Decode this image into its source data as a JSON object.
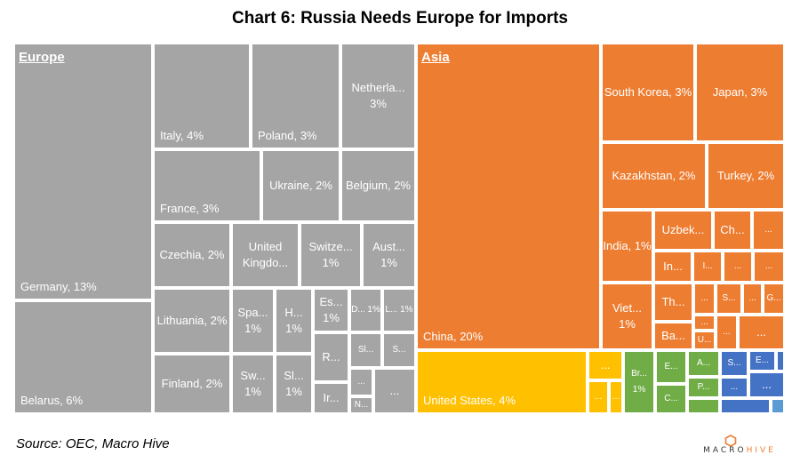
{
  "chart_data": {
    "type": "treemap",
    "title": "Chart 6: Russia Needs Europe for Imports",
    "source": "Source: OEC, Macro Hive",
    "groups": [
      {
        "name": "Europe",
        "color": "#a5a5a5",
        "items": [
          {
            "label": "Germany, 13%",
            "value": 13
          },
          {
            "label": "Belarus, 6%",
            "value": 6
          },
          {
            "label": "Italy, 4%",
            "value": 4
          },
          {
            "label": "Poland, 3%",
            "value": 3
          },
          {
            "label": "Netherla... 3%",
            "value": 3
          },
          {
            "label": "France, 3%",
            "value": 3
          },
          {
            "label": "Ukraine, 2%",
            "value": 2
          },
          {
            "label": "Belgium, 2%",
            "value": 2
          },
          {
            "label": "Czechia, 2%",
            "value": 2
          },
          {
            "label": "United Kingdo...",
            "value": null
          },
          {
            "label": "Switze... 1%",
            "value": 1
          },
          {
            "label": "Aust... 1%",
            "value": 1
          },
          {
            "label": "Lithuania, 2%",
            "value": 2
          },
          {
            "label": "Spa... 1%",
            "value": 1
          },
          {
            "label": "H... 1%",
            "value": 1
          },
          {
            "label": "Es... 1%",
            "value": 1
          },
          {
            "label": "D... 1%",
            "value": 1
          },
          {
            "label": "L... 1%",
            "value": 1
          },
          {
            "label": "Finland, 2%",
            "value": 2
          },
          {
            "label": "Sw... 1%",
            "value": 1
          },
          {
            "label": "Sl... 1%",
            "value": 1
          },
          {
            "label": "R...",
            "value": null
          },
          {
            "label": "Sl...",
            "value": null
          },
          {
            "label": "S...",
            "value": null
          },
          {
            "label": "Ir...",
            "value": null
          },
          {
            "label": "...",
            "value": null
          },
          {
            "label": "N...",
            "value": null
          },
          {
            "label": "...",
            "value": null
          }
        ]
      },
      {
        "name": "Asia",
        "color": "#ed7d31",
        "items": [
          {
            "label": "China, 20%",
            "value": 20
          },
          {
            "label": "South Korea, 3%",
            "value": 3
          },
          {
            "label": "Japan, 3%",
            "value": 3
          },
          {
            "label": "Kazakhstan, 2%",
            "value": 2
          },
          {
            "label": "Turkey, 2%",
            "value": 2
          },
          {
            "label": "India, 1%",
            "value": 1
          },
          {
            "label": "Uzbek...",
            "value": null
          },
          {
            "label": "Ch...",
            "value": null
          },
          {
            "label": "...",
            "value": null
          },
          {
            "label": "In...",
            "value": null
          },
          {
            "label": "I...",
            "value": null
          },
          {
            "label": "...",
            "value": null
          },
          {
            "label": "...",
            "value": null
          },
          {
            "label": "Viet... 1%",
            "value": 1
          },
          {
            "label": "Th...",
            "value": null
          },
          {
            "label": "...",
            "value": null
          },
          {
            "label": "S...",
            "value": null
          },
          {
            "label": "...",
            "value": null
          },
          {
            "label": "G...",
            "value": null
          },
          {
            "label": "...",
            "value": null
          },
          {
            "label": "Ba...",
            "value": null
          },
          {
            "label": "U...",
            "value": null
          },
          {
            "label": "...",
            "value": null
          },
          {
            "label": "...",
            "value": null
          }
        ]
      },
      {
        "name": "",
        "color": "#ffc000",
        "items": [
          {
            "label": "United States, 4%",
            "value": 4
          },
          {
            "label": "...",
            "value": null
          },
          {
            "label": "...",
            "value": null
          },
          {
            "label": "...",
            "value": null
          }
        ]
      },
      {
        "name": "",
        "color": "#70ad47",
        "items": [
          {
            "label": "Br... 1%",
            "value": 1
          },
          {
            "label": "E...",
            "value": null
          },
          {
            "label": "C...",
            "value": null
          },
          {
            "label": "A...",
            "value": null
          },
          {
            "label": "P...",
            "value": null
          },
          {
            "label": "",
            "value": null
          }
        ]
      },
      {
        "name": "",
        "color": "#4472c4",
        "items": [
          {
            "label": "S...",
            "value": null
          },
          {
            "label": "E...",
            "value": null
          },
          {
            "label": "...",
            "value": null
          },
          {
            "label": "...",
            "value": null
          },
          {
            "label": "",
            "value": null
          },
          {
            "label": "",
            "value": null
          }
        ]
      },
      {
        "name": "",
        "color": "#5b9bd5",
        "items": [
          {
            "label": "",
            "value": null
          },
          {
            "label": "",
            "value": null
          }
        ]
      }
    ]
  },
  "logo": {
    "text": "MACROHIVE",
    "color": "#ed7d31"
  }
}
